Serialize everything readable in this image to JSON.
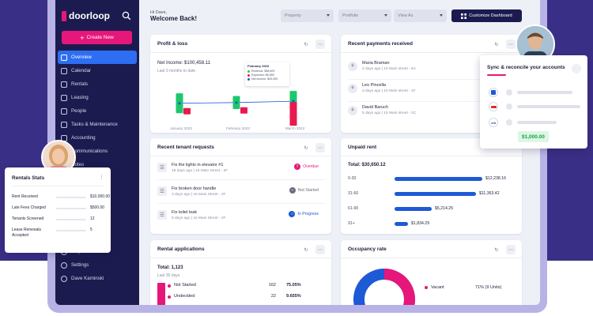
{
  "app": {
    "logo": "doorloop"
  },
  "sidebar": {
    "create_label": "Create New",
    "items": [
      {
        "label": "Overview",
        "icon": "grid-icon"
      },
      {
        "label": "Calendar",
        "icon": "calendar-icon"
      },
      {
        "label": "Rentals",
        "icon": "building-icon"
      },
      {
        "label": "Leasing",
        "icon": "key-icon"
      },
      {
        "label": "People",
        "icon": "people-icon"
      },
      {
        "label": "Tasks & Maintenance",
        "icon": "tasks-icon"
      },
      {
        "label": "Accounting",
        "icon": "accounting-icon"
      },
      {
        "label": "Communications",
        "icon": "chat-icon"
      },
      {
        "label": "Notes",
        "icon": "notes-icon"
      }
    ],
    "bottom_items": [
      {
        "label": "Help",
        "icon": "help-icon"
      },
      {
        "label": "Settings",
        "icon": "settings-icon"
      },
      {
        "label": "Dave Kaminski",
        "icon": "user-icon"
      }
    ]
  },
  "header": {
    "greeting": "Hi Dave,",
    "welcome": "Welcome Back!",
    "property": "Property",
    "portfolio": "Portfolio",
    "view_as": "View As",
    "customize": "Customize Dashboard"
  },
  "profit_loss": {
    "title": "Profit & loss",
    "net_income": "Net Income: $100,458.11",
    "period": "Last 3 months to date",
    "tooltip": {
      "month": "February 2023",
      "revenue": "Revenue: $58,609",
      "expenses": "Expenses: $5,550",
      "net": "Net income: $25,059"
    },
    "colors": {
      "revenue": "#1fc76b",
      "expenses": "#e8194e",
      "net": "#1e59d6"
    },
    "chart_data": {
      "type": "bar",
      "categories": [
        "January 2023",
        "February 2023",
        "March 2023"
      ],
      "series": [
        {
          "name": "Revenue",
          "values": [
            58000,
            58609,
            60000
          ]
        },
        {
          "name": "Expenses",
          "values": [
            6000,
            5550,
            30000
          ]
        },
        {
          "name": "Net income",
          "values": [
            24000,
            25059,
            27000
          ]
        }
      ]
    }
  },
  "recent_payments": {
    "title": "Recent payments received",
    "items": [
      {
        "name": "Maria Braman",
        "sub": "2 days ago | 15 Main street - 6A"
      },
      {
        "name": "Leo Pincella",
        "sub": "3 days ago | 15 Main street - 1F"
      },
      {
        "name": "David Baruch",
        "sub": "5 days ago | 15 Main street - 2C"
      }
    ]
  },
  "sync": {
    "title": "Sync & reconcile your accounts",
    "amount": "$1,000.00",
    "banks": [
      "chase-icon",
      "bofa-icon",
      "citi-icon"
    ]
  },
  "tenant_requests": {
    "title": "Recent tenant requests",
    "items": [
      {
        "title": "Fix the lights in elevator #1",
        "sub": "18 days ago | 15 Main Street - 2F",
        "status": "Overdue",
        "status_color": "#e6177a",
        "status_icon": "!"
      },
      {
        "title": "Fix broken door handle",
        "sub": "3 days ago | 15 Main Street - 2F",
        "status": "Not Started",
        "status_color": "#6b6f80",
        "status_icon": "–"
      },
      {
        "title": "Fix toilet leak",
        "sub": "5 days ago | 15 Main Street - 2F",
        "status": "In Progress",
        "status_color": "#1e59d6",
        "status_icon": "○"
      }
    ]
  },
  "unpaid_rent": {
    "title": "Unpaid rent",
    "total": "Total: $30,650.12",
    "rows": [
      {
        "label": "0-30",
        "value": "$12,238.16",
        "amount": 12238.16
      },
      {
        "label": "31-60",
        "value": "$11,363.42",
        "amount": 11363.42
      },
      {
        "label": "61-90",
        "value": "$5,214.25",
        "amount": 5214.25
      },
      {
        "label": "91+",
        "value": "$1,834.29",
        "amount": 1834.29
      }
    ]
  },
  "rental_applications": {
    "title": "Rental applications",
    "total": "Total: 1,123",
    "period": "Last 30 days",
    "rows": [
      {
        "label": "Not Started",
        "count": "162",
        "pct": "75.05%",
        "color": "#e6177a"
      },
      {
        "label": "Undecided",
        "count": "22",
        "pct": "9.655%",
        "color": "#e6177a"
      }
    ]
  },
  "occupancy": {
    "title": "Occupancy rate",
    "vacant_label": "Vacant",
    "vacant_value": "71% (9 Units)",
    "vacant_fraction": 0.71,
    "colors": {
      "vacant": "#e6177a",
      "occupied": "#1e59d6"
    }
  },
  "rentals_stats": {
    "title": "Rentals Stats",
    "rows": [
      {
        "label": "Rent Received",
        "value": "$10,000.00"
      },
      {
        "label": "Late Fees Charged",
        "value": "$500.00"
      },
      {
        "label": "Tenants Screened",
        "value": "12"
      },
      {
        "label": "Lease Renewals Accepted",
        "value": "5"
      }
    ]
  }
}
